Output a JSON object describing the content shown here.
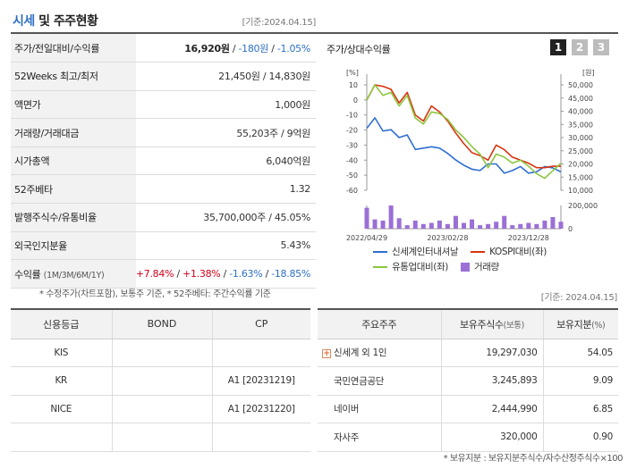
{
  "header": {
    "title_part1": "시세",
    "title_part2": "및 주주현황",
    "date": "[기준:2024.04.15]"
  },
  "info": [
    {
      "label": "주가/전일대비/수익률",
      "price": "16,920원",
      "change": "-180원",
      "rate": "-1.05%"
    },
    {
      "label": "52Weeks 최고/최저",
      "value": "21,450원 / 14,830원"
    },
    {
      "label": "액면가",
      "value": "1,000원"
    },
    {
      "label": "거래량/거래대금",
      "value": "55,203주 / 9억원"
    },
    {
      "label": "시가총액",
      "value": "6,040억원"
    },
    {
      "label": "52주베타",
      "value": "1.32"
    },
    {
      "label": "발행주식수/유통비율",
      "value": "35,700,000주 / 45.05%"
    },
    {
      "label": "외국인지분율",
      "value": "5.43%"
    },
    {
      "label": "수익률",
      "label_sub": "(1M/3M/6M/1Y)",
      "r1m": "+7.84%",
      "r3m": "+1.38%",
      "r6m": "-1.63%",
      "r1y": "-18.85%"
    }
  ],
  "note1": "* 수정주가(차트포함), 보통주 기준, * 52주베타: 주간수익률 기준",
  "date2": "[기준: 2024.04.15]",
  "chart": {
    "title": "주가/상대수익률",
    "tabs": [
      "1",
      "2",
      "3"
    ],
    "active_tab": 0,
    "left_unit": "[%]",
    "right_unit": "[원]",
    "vol_tick": "200,000",
    "vol_zero": "0",
    "legend": [
      {
        "name": "신세계인터내셔날",
        "color": "#2f6fd0",
        "kind": "line"
      },
      {
        "name": "KOSPI대비(좌)",
        "color": "#d8340f",
        "kind": "line"
      },
      {
        "name": "유통업대비(좌)",
        "color": "#8cc63f",
        "kind": "line"
      },
      {
        "name": "거래량",
        "color": "#9b6fd6",
        "kind": "bar"
      }
    ]
  },
  "chart_data": {
    "type": "line",
    "x": [
      "2022/04",
      "2022/05",
      "2022/06",
      "2022/07",
      "2022/08",
      "2022/09",
      "2022/10",
      "2022/11",
      "2022/12",
      "2023/01",
      "2023/02",
      "2023/03",
      "2023/04",
      "2023/05",
      "2023/06",
      "2023/07",
      "2023/08",
      "2023/09",
      "2023/10",
      "2023/11",
      "2023/12",
      "2024/01",
      "2024/02",
      "2024/03",
      "2024/04"
    ],
    "x_ticks": [
      "2022/04/29",
      "2023/02/28",
      "2023/12/28"
    ],
    "y_left_ticks": [
      10,
      0,
      -10,
      -20,
      -30,
      -40,
      -50,
      -60
    ],
    "y_right_ticks": [
      "50,000",
      "45,000",
      "40,000",
      "35,000",
      "30,000",
      "25,000",
      "20,000",
      "15,000",
      "10,000"
    ],
    "y_left_range": [
      -60,
      10
    ],
    "y_right_range": [
      10000,
      50000
    ],
    "series": [
      {
        "name": "신세계인터내셔날",
        "axis": "right",
        "values": [
          33500,
          37500,
          32500,
          33000,
          30000,
          31000,
          25500,
          26000,
          26500,
          26000,
          24000,
          21500,
          19500,
          18000,
          17500,
          20000,
          20000,
          16500,
          17500,
          19000,
          16500,
          17000,
          19000,
          18500,
          17000
        ]
      },
      {
        "name": "KOSPI대비(좌)",
        "axis": "left",
        "values": [
          0,
          10,
          9,
          7,
          -2,
          5,
          -10,
          -14,
          -4,
          -8,
          -14,
          -22,
          -29,
          -35,
          -37,
          -40,
          -30,
          -33,
          -38,
          -40,
          -42,
          -45,
          -45,
          -44,
          -44
        ]
      },
      {
        "name": "유통업대비(좌)",
        "axis": "left",
        "values": [
          0,
          10,
          3,
          5,
          -4,
          3,
          -12,
          -16,
          -8,
          -9,
          -13,
          -20,
          -25,
          -31,
          -36,
          -45,
          -36,
          -38,
          -42,
          -40,
          -44,
          -49,
          -52,
          -47,
          -42
        ]
      },
      {
        "name": "거래량",
        "axis": "volume",
        "values": [
          180000,
          80000,
          70000,
          200000,
          90000,
          30000,
          70000,
          40000,
          50000,
          70000,
          40000,
          110000,
          50000,
          80000,
          30000,
          40000,
          60000,
          110000,
          30000,
          40000,
          50000,
          40000,
          70000,
          100000,
          60000
        ]
      }
    ],
    "volume_range": [
      0,
      200000
    ]
  },
  "credit": {
    "headers": [
      "신용등급",
      "BOND",
      "CP"
    ],
    "rows": [
      [
        "KIS",
        "",
        ""
      ],
      [
        "KR",
        "",
        "A1 [20231219]"
      ],
      [
        "NICE",
        "",
        "A1 [20231220]"
      ],
      [
        "",
        "",
        ""
      ]
    ]
  },
  "holders": {
    "headers": [
      "주요주주",
      "보유주식수",
      "(보통)",
      "보유지분",
      "(%)"
    ],
    "rows": [
      {
        "name": "신세계 외 1인",
        "shares": "19,297,030",
        "pct": "54.05",
        "expandable": true
      },
      {
        "name": "국민연금공단",
        "shares": "3,245,893",
        "pct": "9.09",
        "expandable": false
      },
      {
        "name": "네이버",
        "shares": "2,444,990",
        "pct": "6.85",
        "expandable": false
      },
      {
        "name": "자사주",
        "shares": "320,000",
        "pct": "0.90",
        "expandable": false
      }
    ],
    "expand_symbol": "+"
  },
  "note2": "* 보유지분 : 보유지분주식수/자수산정주식수×100"
}
